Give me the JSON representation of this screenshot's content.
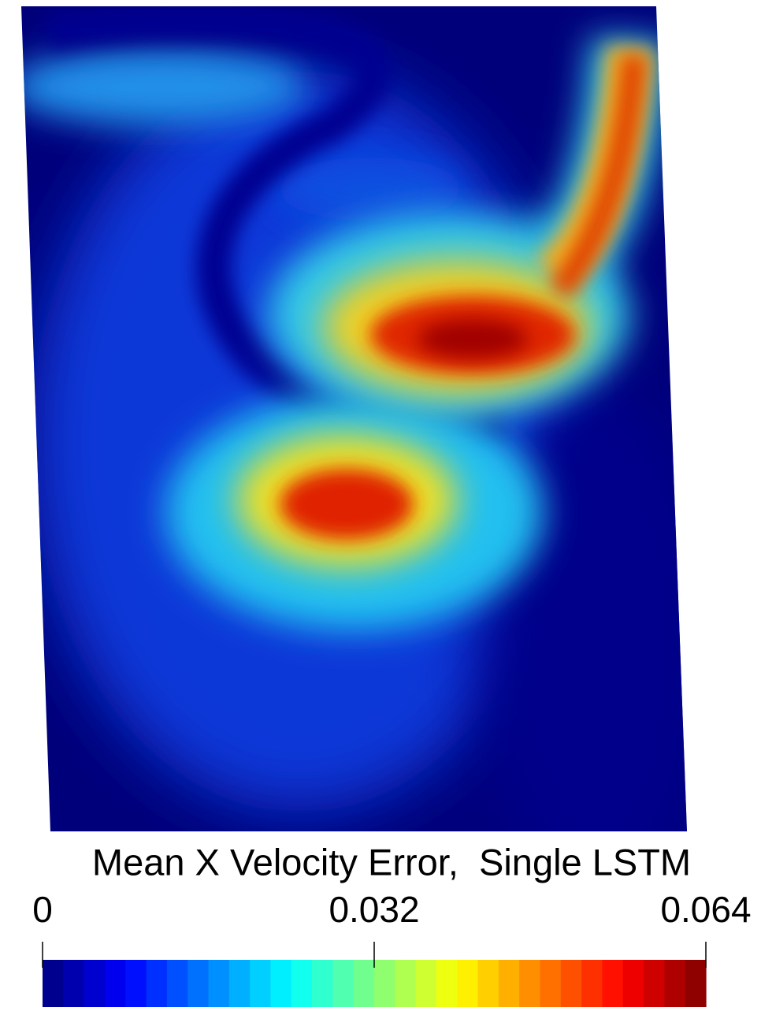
{
  "chart_data": {
    "type": "heatmap",
    "title": "Mean X Velocity Error,  Single LSTM",
    "colorbar": {
      "lim": [
        0,
        0.064
      ],
      "ticks": [
        0,
        0.032,
        0.064
      ],
      "colormap": "jet"
    }
  }
}
